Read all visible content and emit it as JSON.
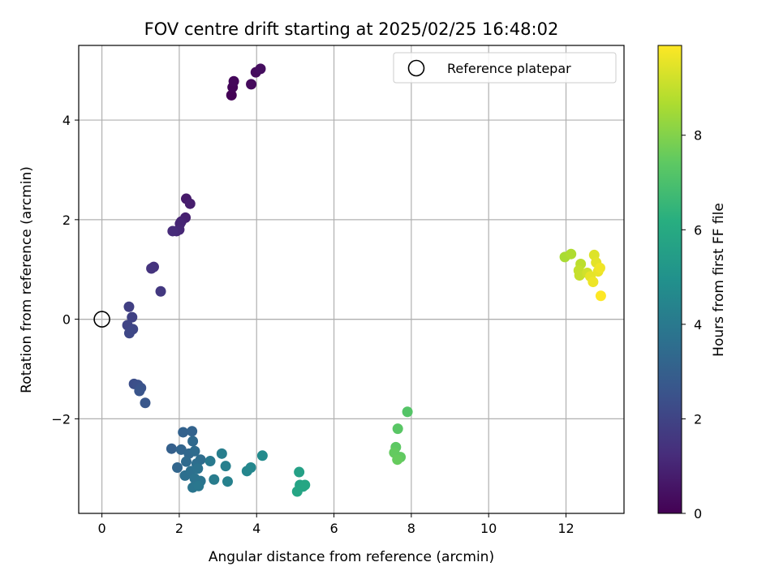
{
  "chart_data": {
    "type": "scatter",
    "title": "FOV centre drift starting at 2025/02/25 16:48:02",
    "xlabel": "Angular distance from reference (arcmin)",
    "ylabel": "Rotation from reference (arcmin)",
    "xlim": [
      -0.6,
      13.5
    ],
    "ylim": [
      -3.9,
      5.5
    ],
    "xticks": [
      0,
      2,
      4,
      6,
      8,
      10,
      12
    ],
    "yticks": [
      -2,
      0,
      2,
      4
    ],
    "xtick_labels": [
      "0",
      "2",
      "4",
      "6",
      "8",
      "10",
      "12"
    ],
    "ytick_labels": [
      "−2",
      "0",
      "2",
      "4"
    ],
    "grid": true,
    "legend": {
      "label": "Reference platepar",
      "placement": "top-right"
    },
    "reference_point": {
      "x": 0,
      "y": 0
    },
    "colorbar": {
      "label": "Hours from first FF file",
      "colormap": "viridis",
      "range": [
        0,
        9.9
      ],
      "ticks": [
        0,
        2,
        4,
        6,
        8
      ],
      "tick_labels": [
        "0",
        "2",
        "4",
        "6",
        "8"
      ]
    },
    "series": [
      {
        "x": [
          3.35,
          3.38,
          3.41,
          3.86,
          3.98,
          4.1
        ],
        "y": [
          4.5,
          4.66,
          4.78,
          4.72,
          4.96,
          5.03
        ],
        "hours": [
          0.05,
          0.12,
          0.18,
          0.24,
          0.3,
          0.36
        ]
      },
      {
        "x": [
          2.18,
          2.28,
          2.16,
          2.05,
          2.02,
          2.0,
          1.93,
          1.83,
          1.34,
          1.28,
          1.52
        ],
        "y": [
          2.42,
          2.32,
          2.04,
          1.96,
          1.92,
          1.8,
          1.77,
          1.77,
          1.05,
          1.02,
          0.56
        ],
        "hours": [
          0.7,
          0.78,
          0.86,
          0.94,
          1.0,
          1.06,
          1.12,
          1.2,
          1.4,
          1.48,
          1.6
        ]
      },
      {
        "x": [
          0.7,
          0.78,
          0.66,
          0.8,
          0.71,
          0.83,
          0.93,
          1.01,
          0.97,
          1.12
        ],
        "y": [
          0.25,
          0.04,
          -0.12,
          -0.2,
          -0.28,
          -1.3,
          -1.32,
          -1.38,
          -1.44,
          -1.68
        ],
        "hours": [
          1.85,
          1.92,
          2.0,
          2.06,
          2.12,
          2.35,
          2.42,
          2.5,
          2.58,
          2.68
        ]
      },
      {
        "x": [
          1.8,
          2.1,
          2.33,
          2.05,
          2.25,
          2.35,
          2.4,
          2.55,
          2.45,
          2.18,
          1.95,
          2.15,
          2.3,
          2.48,
          2.4,
          2.55,
          2.35,
          2.5,
          2.8,
          2.9,
          3.1,
          3.2,
          3.25,
          3.75,
          3.85,
          4.15
        ],
        "y": [
          -2.6,
          -2.27,
          -2.25,
          -2.62,
          -2.7,
          -2.45,
          -2.65,
          -2.82,
          -2.9,
          -2.86,
          -2.98,
          -3.14,
          -3.05,
          -3.0,
          -3.2,
          -3.25,
          -3.38,
          -3.35,
          -2.85,
          -3.22,
          -2.7,
          -2.95,
          -3.26,
          -3.05,
          -2.98,
          -2.74
        ],
        "hours": [
          3.0,
          3.1,
          3.15,
          3.2,
          3.3,
          3.35,
          3.45,
          3.5,
          3.55,
          3.4,
          3.25,
          3.6,
          3.65,
          3.7,
          3.75,
          3.8,
          3.85,
          3.9,
          4.0,
          4.1,
          4.2,
          4.25,
          4.3,
          4.5,
          4.55,
          4.7
        ]
      },
      {
        "x": [
          5.1,
          5.12,
          5.2,
          5.05,
          5.25
        ],
        "y": [
          -3.07,
          -3.33,
          -3.36,
          -3.46,
          -3.33
        ],
        "hours": [
          5.6,
          5.7,
          5.75,
          5.8,
          5.85
        ]
      },
      {
        "x": [
          7.9,
          7.65,
          7.6,
          7.56,
          7.72,
          7.64
        ],
        "y": [
          -1.86,
          -2.2,
          -2.57,
          -2.68,
          -2.77,
          -2.82
        ],
        "hours": [
          7.2,
          7.3,
          7.4,
          7.5,
          7.45,
          7.55
        ]
      },
      {
        "x": [
          11.97,
          12.13,
          12.38,
          12.33,
          12.35,
          12.55,
          12.73,
          12.78,
          12.83,
          12.88,
          12.63,
          12.7,
          12.9
        ],
        "y": [
          1.25,
          1.31,
          1.11,
          0.98,
          0.88,
          0.93,
          1.29,
          1.14,
          0.96,
          1.03,
          0.86,
          0.75,
          0.47
        ],
        "hours": [
          8.6,
          8.7,
          8.9,
          9.0,
          9.05,
          9.2,
          9.4,
          9.5,
          9.6,
          9.7,
          9.55,
          9.65,
          9.9
        ]
      }
    ]
  }
}
